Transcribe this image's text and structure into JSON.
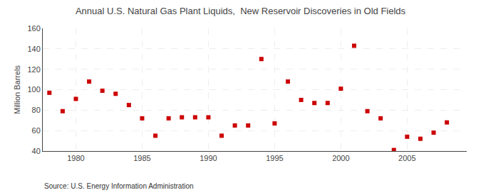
{
  "chart_data": {
    "type": "scatter",
    "title": "Annual U.S. Natural Gas Plant Liquids,  New Reservoir Discoveries in Old Fields",
    "ylabel": "Million Barrels",
    "annotations": [
      "Source: U.S. Energy Information Administration"
    ],
    "x": [
      1978,
      1979,
      1980,
      1981,
      1982,
      1983,
      1984,
      1985,
      1986,
      1987,
      1988,
      1989,
      1990,
      1991,
      1992,
      1993,
      1994,
      1995,
      1996,
      1997,
      1998,
      1999,
      2000,
      2001,
      2002,
      2003,
      2004,
      2005,
      2006,
      2007,
      2008
    ],
    "values": [
      97,
      79,
      91,
      108,
      99,
      96,
      85,
      72,
      55,
      72,
      73,
      73,
      73,
      55,
      65,
      65,
      130,
      67,
      108,
      90,
      87,
      87,
      101,
      143,
      79,
      72,
      41,
      54,
      52,
      58,
      68
    ],
    "color": "#cc0000",
    "marker": "square",
    "xlim": [
      1977.5,
      2009.5
    ],
    "xticks": [
      1980,
      1985,
      1990,
      1995,
      2000,
      2005
    ],
    "ylim": [
      40,
      160
    ],
    "yticks": [
      40,
      60,
      80,
      100,
      120,
      140,
      160
    ],
    "grid": true
  }
}
